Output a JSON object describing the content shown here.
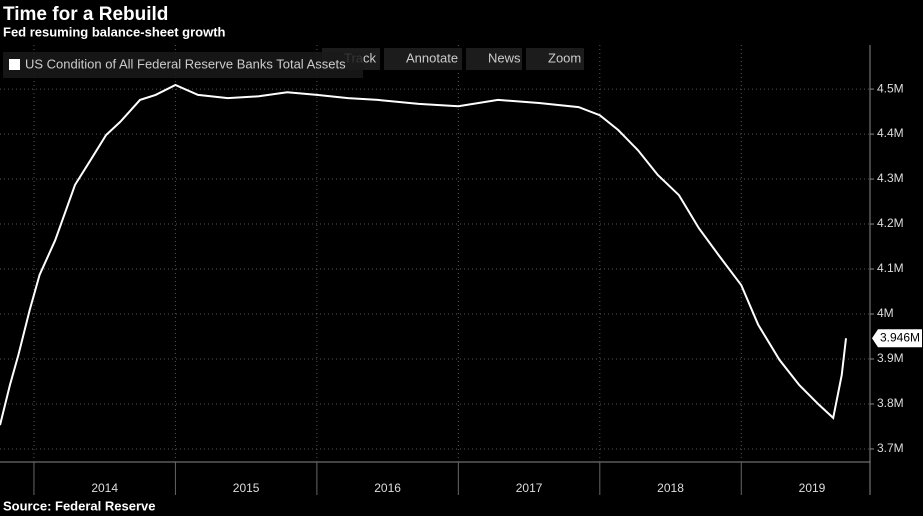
{
  "chart_data": {
    "type": "line",
    "title": "Time for a Rebuild",
    "subtitle": "Fed resuming balance-sheet growth",
    "source": "Source: Federal Reserve",
    "toolbar": [
      "Track",
      "Annotate",
      "News",
      "Zoom"
    ],
    "x": [
      2013.76,
      2013.83,
      2013.89,
      2013.97,
      2014.04,
      2014.15,
      2014.29,
      2014.4,
      2014.51,
      2014.61,
      2014.75,
      2014.86,
      2015.0,
      2015.16,
      2015.37,
      2015.59,
      2015.79,
      2016.0,
      2016.22,
      2016.43,
      2016.72,
      2017.0,
      2017.28,
      2017.57,
      2017.85,
      2018.0,
      2018.13,
      2018.27,
      2018.41,
      2018.56,
      2018.7,
      2018.84,
      2019.0,
      2019.12,
      2019.27,
      2019.41,
      2019.55,
      2019.65,
      2019.71,
      2019.74
    ],
    "series": [
      {
        "name": "US Condition of All Federal Reserve Banks Total Assets",
        "color": "#ffffff",
        "values": [
          3.753,
          3.842,
          3.909,
          4.009,
          4.087,
          4.164,
          4.287,
          4.342,
          4.398,
          4.427,
          4.476,
          4.487,
          4.509,
          4.487,
          4.48,
          4.484,
          4.493,
          4.487,
          4.48,
          4.476,
          4.467,
          4.462,
          4.476,
          4.469,
          4.46,
          4.442,
          4.409,
          4.364,
          4.309,
          4.264,
          4.191,
          4.131,
          4.064,
          3.976,
          3.898,
          3.842,
          3.798,
          3.769,
          3.864,
          3.946
        ],
        "value_labels": [
          null,
          null,
          null,
          null,
          null,
          null,
          null,
          null,
          null,
          null,
          null,
          null,
          null,
          null,
          null,
          null,
          null,
          null,
          null,
          null,
          null,
          null,
          null,
          null,
          null,
          null,
          null,
          null,
          null,
          null,
          null,
          null,
          null,
          null,
          null,
          null,
          null,
          null,
          null,
          "3.946M"
        ]
      }
    ],
    "xlim": [
      2013.76,
      2019.91
    ],
    "xticks": [
      2014,
      2015,
      2016,
      2017,
      2018,
      2019
    ],
    "ylim": [
      3.671,
      4.598
    ],
    "yticks": [
      {
        "value": 3.7,
        "label": "3.7M"
      },
      {
        "value": 3.8,
        "label": "3.8M"
      },
      {
        "value": 3.9,
        "label": "3.9M"
      },
      {
        "value": 4,
        "label": "4M"
      },
      {
        "value": 4.1,
        "label": "4.1M"
      },
      {
        "value": 4.2,
        "label": "4.2M"
      },
      {
        "value": 4.3,
        "label": "4.3M"
      },
      {
        "value": 4.4,
        "label": "4.4M"
      },
      {
        "value": 4.5,
        "label": "4.5M"
      }
    ],
    "grid": true
  }
}
